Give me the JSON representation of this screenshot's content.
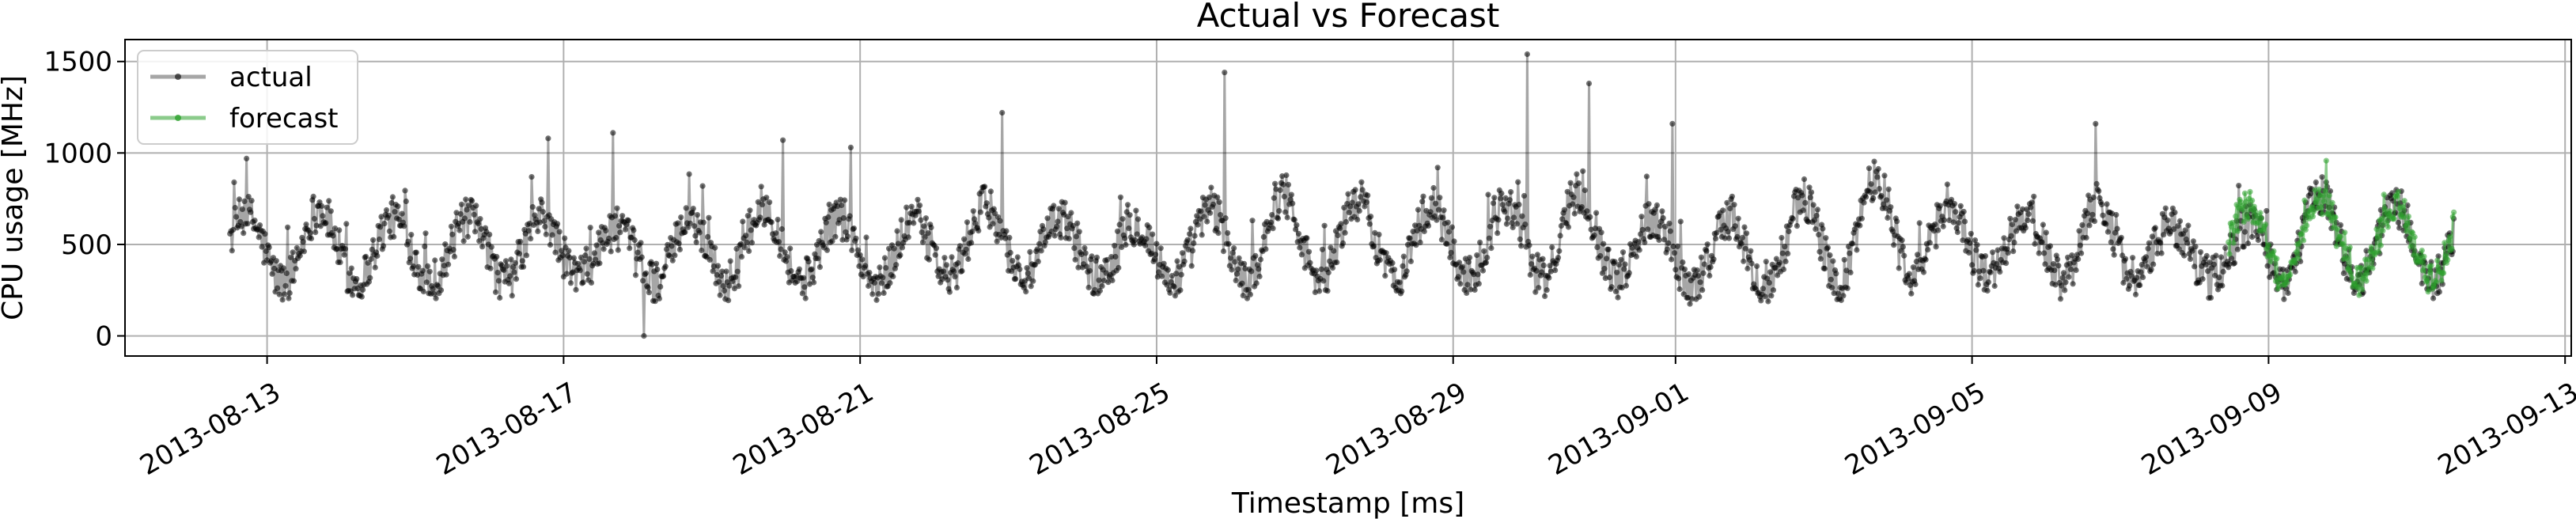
{
  "chart_data": {
    "type": "line",
    "title": "Actual vs Forecast",
    "xlabel": "Timestamp [ms]",
    "ylabel": "CPU usage [MHz]",
    "x_axis_type": "date",
    "xlim": [
      "2013-08-11T02:00",
      "2013-09-13T02:00"
    ],
    "ylim": [
      -110,
      1620
    ],
    "x_ticks": [
      "2013-08-13",
      "2013-08-17",
      "2013-08-21",
      "2013-08-25",
      "2013-08-29",
      "2013-09-01",
      "2013-09-05",
      "2013-09-09",
      "2013-09-13"
    ],
    "y_ticks": [
      0,
      500,
      1000,
      1500
    ],
    "grid": true,
    "legend_position": "top-left",
    "series": [
      {
        "name": "actual",
        "color": "#000000",
        "line_alpha": 0.35,
        "x_start": "2013-08-12T12:00",
        "x_end": "2013-09-11T12:00",
        "daily_peaks": [
          [
            "2013-08-12",
            650
          ],
          [
            "2013-08-13",
            700
          ],
          [
            "2013-08-14",
            650
          ],
          [
            "2013-08-15",
            630
          ],
          [
            "2013-08-16",
            660
          ],
          [
            "2013-08-17",
            580
          ],
          [
            "2013-08-18",
            600
          ],
          [
            "2013-08-19",
            720
          ],
          [
            "2013-08-20",
            660
          ],
          [
            "2013-08-21",
            620
          ],
          [
            "2013-08-22",
            720
          ],
          [
            "2013-08-23",
            650
          ],
          [
            "2013-08-24",
            600
          ],
          [
            "2013-08-25",
            660
          ],
          [
            "2013-08-26",
            780
          ],
          [
            "2013-08-27",
            760
          ],
          [
            "2013-08-28",
            700
          ],
          [
            "2013-08-29",
            700
          ],
          [
            "2013-08-30",
            820
          ],
          [
            "2013-08-31",
            660
          ],
          [
            "2013-09-01",
            620
          ],
          [
            "2013-09-02",
            700
          ],
          [
            "2013-09-03",
            900
          ],
          [
            "2013-09-04",
            720
          ],
          [
            "2013-09-05",
            620
          ],
          [
            "2013-09-06",
            760
          ],
          [
            "2013-09-07",
            620
          ],
          [
            "2013-09-08",
            560
          ],
          [
            "2013-09-09",
            800
          ],
          [
            "2013-09-10",
            720
          ],
          [
            "2013-09-11",
            680
          ]
        ],
        "daily_troughs": [
          [
            "2013-08-12",
            320
          ],
          [
            "2013-08-13",
            280
          ],
          [
            "2013-08-14",
            300
          ],
          [
            "2013-08-15",
            300
          ],
          [
            "2013-08-16",
            300
          ],
          [
            "2013-08-17",
            350
          ],
          [
            "2013-08-18",
            280
          ],
          [
            "2013-08-19",
            300
          ],
          [
            "2013-08-20",
            300
          ],
          [
            "2013-08-21",
            260
          ],
          [
            "2013-08-22",
            340
          ],
          [
            "2013-08-23",
            320
          ],
          [
            "2013-08-24",
            320
          ],
          [
            "2013-08-25",
            300
          ],
          [
            "2013-08-26",
            300
          ],
          [
            "2013-08-27",
            300
          ],
          [
            "2013-08-28",
            320
          ],
          [
            "2013-08-29",
            330
          ],
          [
            "2013-08-30",
            300
          ],
          [
            "2013-08-31",
            330
          ],
          [
            "2013-09-01",
            260
          ],
          [
            "2013-09-02",
            250
          ],
          [
            "2013-09-03",
            300
          ],
          [
            "2013-09-04",
            350
          ],
          [
            "2013-09-05",
            340
          ],
          [
            "2013-09-06",
            300
          ],
          [
            "2013-09-07",
            320
          ],
          [
            "2013-09-08",
            320
          ],
          [
            "2013-09-09",
            300
          ],
          [
            "2013-09-10",
            300
          ],
          [
            "2013-09-11",
            300
          ]
        ],
        "spikes": [
          [
            "2013-08-16T19:00",
            1080
          ],
          [
            "2013-08-17T16:00",
            1110
          ],
          [
            "2013-08-18T02:00",
            0
          ],
          [
            "2013-08-19T23:00",
            1070
          ],
          [
            "2013-08-20T21:00",
            1030
          ],
          [
            "2013-08-22T22:00",
            1220
          ],
          [
            "2013-08-25T22:00",
            1440
          ],
          [
            "2013-08-30T00:00",
            1540
          ],
          [
            "2013-08-30T20:00",
            1380
          ],
          [
            "2013-08-31T23:00",
            1160
          ],
          [
            "2013-09-06T16:00",
            1160
          ]
        ]
      },
      {
        "name": "forecast",
        "color": "#2ca02c",
        "line_alpha": 0.55,
        "x_start": "2013-09-08T11:00",
        "x_end": "2013-09-11T12:00",
        "daily_peaks": [
          [
            "2013-09-08",
            700
          ],
          [
            "2013-09-09",
            760
          ],
          [
            "2013-09-10",
            700
          ],
          [
            "2013-09-11",
            760
          ]
        ],
        "daily_troughs": [
          [
            "2013-09-08",
            320
          ],
          [
            "2013-09-09",
            300
          ],
          [
            "2013-09-10",
            300
          ],
          [
            "2013-09-11",
            320
          ]
        ]
      }
    ]
  }
}
